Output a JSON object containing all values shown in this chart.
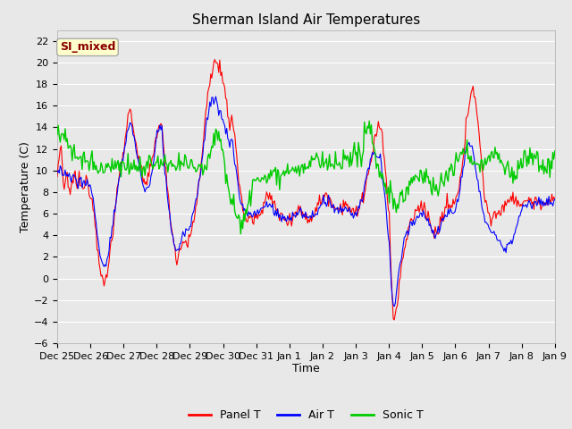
{
  "title": "Sherman Island Air Temperatures",
  "xlabel": "Time",
  "ylabel": "Temperature (C)",
  "ylim": [
    -6,
    23
  ],
  "yticks": [
    -6,
    -4,
    -2,
    0,
    2,
    4,
    6,
    8,
    10,
    12,
    14,
    16,
    18,
    20,
    22
  ],
  "background_color": "#e8e8e8",
  "plot_bg_color": "#e8e8e8",
  "annotation_text": "SI_mixed",
  "annotation_color": "#8b0000",
  "annotation_bg": "#ffffcc",
  "panel_color": "#ff0000",
  "air_color": "#0000ff",
  "sonic_color": "#00cc00",
  "legend_labels": [
    "Panel T",
    "Air T",
    "Sonic T"
  ],
  "x_tick_labels": [
    "Dec 25",
    "Dec 26",
    "Dec 27",
    "Dec 28",
    "Dec 29",
    "Dec 30",
    "Dec 31",
    "Jan 1",
    "Jan 2",
    "Jan 3",
    "Jan 4",
    "Jan 5",
    "Jan 6",
    "Jan 7",
    "Jan 8",
    "Jan 9"
  ],
  "title_fontsize": 11,
  "axis_label_fontsize": 9,
  "tick_fontsize": 8,
  "legend_fontsize": 9,
  "annotation_fontsize": 9,
  "n_points": 500
}
